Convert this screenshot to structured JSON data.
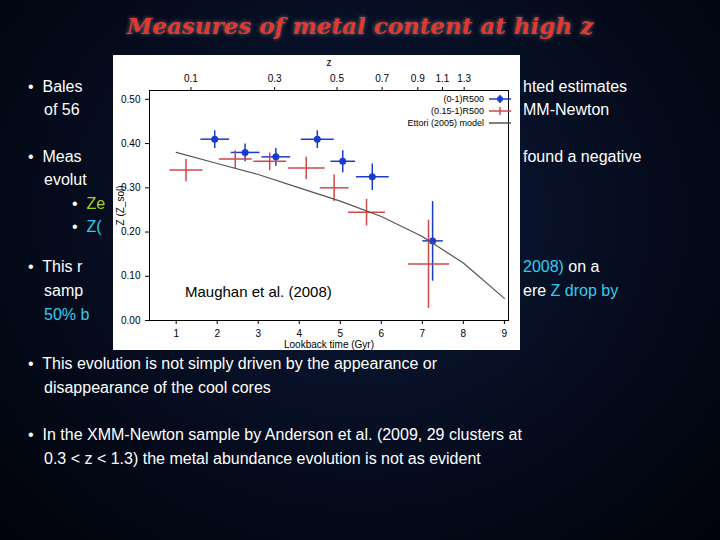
{
  "slide": {
    "title": "Measures of metal content at high z",
    "lines": [
      {
        "left": [
          {
            "text": "•  Bales",
            "color": "#ffffff"
          }
        ],
        "right": [
          {
            "text": "hted estimates",
            "color": "#ffffff"
          }
        ]
      },
      {
        "left": [
          {
            "text": "of 56",
            "color": "#ffffff"
          }
        ],
        "right": [
          {
            "text": "MM-Newton",
            "color": "#ffffff"
          }
        ]
      },
      {
        "left": [
          {
            "text": "•  Meas",
            "color": "#ffffff"
          }
        ],
        "right": [
          {
            "text": "found a negative",
            "color": "#ffffff"
          }
        ]
      },
      {
        "left": [
          {
            "text": "evolut",
            "color": "#ffffff"
          }
        ]
      },
      {
        "left": [
          {
            "text": "•  ",
            "color": "#ffffff"
          },
          {
            "text": "Ze",
            "color": "#a8d020"
          }
        ]
      },
      {
        "left": [
          {
            "text": "•  ",
            "color": "#ffffff"
          },
          {
            "text": "Z(",
            "color": "#33ccee"
          }
        ]
      },
      {
        "left": [
          {
            "text": "•  This r",
            "color": "#ffffff"
          }
        ],
        "right": [
          {
            "text": "2008)",
            "color": "#33ccee"
          },
          {
            "text": " on a",
            "color": "#ffffff"
          }
        ]
      },
      {
        "left": [
          {
            "text": "samp",
            "color": "#ffffff"
          }
        ],
        "right": [
          {
            "text": "ere ",
            "color": "#ffffff"
          },
          {
            "text": "Z drop by",
            "color": "#33ccee"
          }
        ]
      },
      {
        "left": [
          {
            "text": "50% b",
            "color": "#33ccee"
          }
        ]
      },
      {
        "left": [
          {
            "text": "•  This evolution is not simply driven by the appearance or",
            "color": "#ffffff"
          }
        ]
      },
      {
        "left": [
          {
            "text": "disappearance of the cool cores",
            "color": "#ffffff"
          }
        ]
      },
      {
        "left": [
          {
            "text": "•  In the XMM-Newton sample by Anderson et al. (2009, 29 clusters at",
            "color": "#ffffff"
          }
        ]
      },
      {
        "left": [
          {
            "text": "0.3 < z < 1.3) the metal abundance evolution is not as evident",
            "color": "#ffffff"
          }
        ]
      }
    ]
  },
  "chart_data": {
    "type": "scatter",
    "xlabel": "Lookback time (Gyr)",
    "ylabel": "Z (Z_sol)",
    "x2label": "z",
    "annotation": "Maughan et al. (2008)",
    "xlim": [
      0.35,
      9.1
    ],
    "xticks": [
      1,
      2,
      3,
      4,
      5,
      6,
      7,
      8,
      9
    ],
    "ylim": [
      0,
      0.52
    ],
    "yticks": [
      0,
      0.1,
      0.2,
      0.3,
      0.4,
      0.5
    ],
    "x2ticks": [
      {
        "value": 1.36,
        "label": "0.1"
      },
      {
        "value": 3.4,
        "label": "0.3"
      },
      {
        "value": 4.92,
        "label": "0.5"
      },
      {
        "value": 6.02,
        "label": "0.7"
      },
      {
        "value": 6.89,
        "label": "0.9"
      },
      {
        "value": 7.49,
        "label": "1.1"
      },
      {
        "value": 8.02,
        "label": "1.3"
      }
    ],
    "grid": false,
    "legend": "top-right",
    "series": [
      {
        "name": "(0-1)R500",
        "color": "#1a3ccc",
        "marker": "circle",
        "x": [
          1.94,
          2.68,
          3.43,
          4.44,
          5.06,
          5.78,
          7.25
        ],
        "values": [
          0.41,
          0.38,
          0.37,
          0.41,
          0.36,
          0.325,
          0.18
        ],
        "x_err": [
          0.35,
          0.35,
          0.35,
          0.4,
          0.3,
          0.4,
          0.25
        ],
        "y_err": [
          0.02,
          0.02,
          0.02,
          0.02,
          0.025,
          0.03,
          0.09
        ]
      },
      {
        "name": "(0.15-1)R500",
        "color": "#d04848",
        "marker": "none",
        "x": [
          1.24,
          2.44,
          3.28,
          4.17,
          4.85,
          5.64,
          7.15
        ],
        "values": [
          0.34,
          0.365,
          0.36,
          0.345,
          0.3,
          0.245,
          0.128
        ],
        "x_err": [
          0.4,
          0.4,
          0.4,
          0.45,
          0.35,
          0.45,
          0.5
        ],
        "y_err": [
          0.025,
          0.02,
          0.02,
          0.025,
          0.03,
          0.03,
          0.1
        ]
      },
      {
        "name": "Ettori (2005) model",
        "color": "#555555",
        "type": "line",
        "marker": "none",
        "x": [
          1,
          2,
          3,
          4,
          5,
          6,
          7,
          8,
          9
        ],
        "values": [
          0.38,
          0.355,
          0.33,
          0.3,
          0.27,
          0.235,
          0.19,
          0.13,
          0.05
        ]
      }
    ]
  }
}
